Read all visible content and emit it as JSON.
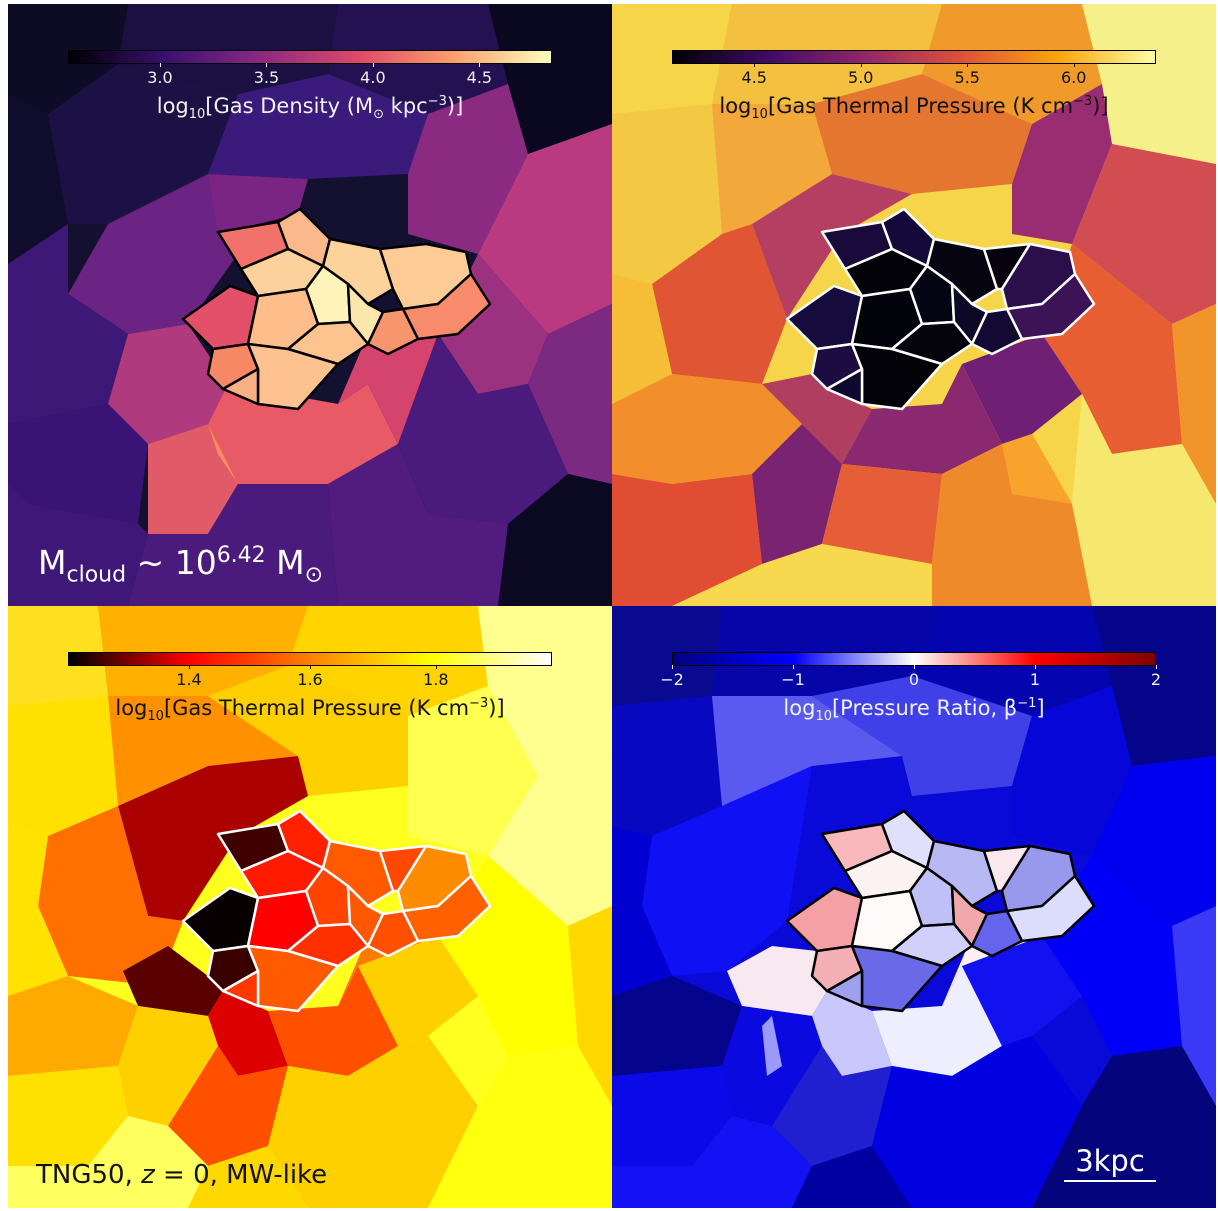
{
  "panels": [
    {
      "id": "density",
      "colorbar": {
        "label_prefix": "log",
        "label_sub": "10",
        "label_main": "[Gas Density (M",
        "label_sun": "⊙",
        "label_unit": " kpc",
        "label_sup": "−3",
        "label_end": ")]",
        "ticks": [
          "3.0",
          "3.5",
          "4.0",
          "4.5"
        ],
        "tick_positions": [
          0.19,
          0.41,
          0.63,
          0.85
        ],
        "colors": [
          "#000004",
          "#3b0f70",
          "#8c2981",
          "#de4968",
          "#fe9f6d",
          "#fcfdbf"
        ]
      },
      "annotation": {
        "text_main": "M",
        "text_sub": "cloud",
        "text_mid": " ∼ 10",
        "text_sup": "6.42",
        "text_unit": " M",
        "text_sun": "⊙"
      }
    },
    {
      "id": "thermal-pressure-plasma",
      "colorbar": {
        "label_prefix": "log",
        "label_sub": "10",
        "label_main": "[Gas Thermal Pressure (K cm",
        "label_sup": "−3",
        "label_end": ")]",
        "ticks": [
          "4.5",
          "5.0",
          "5.5",
          "6.0"
        ],
        "tick_positions": [
          0.17,
          0.39,
          0.61,
          0.83
        ],
        "colors": [
          "#000004",
          "#420a68",
          "#932667",
          "#dd513a",
          "#fca50a",
          "#fcffa4"
        ]
      }
    },
    {
      "id": "thermal-pressure-hot",
      "colorbar": {
        "label_prefix": "log",
        "label_sub": "10",
        "label_main": "[Gas Thermal Pressure (K cm",
        "label_sup": "−3",
        "label_end": ")]",
        "ticks": [
          "1.4",
          "1.6",
          "1.8"
        ],
        "tick_positions": [
          0.25,
          0.5,
          0.76
        ],
        "colors": [
          "#000000",
          "#ff0000",
          "#ff8000",
          "#ffff00",
          "#ffffff"
        ]
      },
      "annotation": {
        "text_a": "TNG50, ",
        "text_z": "z",
        "text_b": " = 0, MW-like"
      }
    },
    {
      "id": "pressure-ratio",
      "colorbar": {
        "label_prefix": "log",
        "label_sub": "10",
        "label_main": "[Pressure Ratio, β",
        "label_sup": "−1",
        "label_end": "]",
        "ticks": [
          "−2",
          "−1",
          "0",
          "1",
          "2"
        ],
        "tick_positions": [
          0.0,
          0.25,
          0.5,
          0.75,
          1.0
        ],
        "colors": [
          "#000080",
          "#0000ff",
          "#ffffff",
          "#ff0000",
          "#800000"
        ]
      },
      "scalebar": {
        "label": "3kpc"
      }
    }
  ]
}
